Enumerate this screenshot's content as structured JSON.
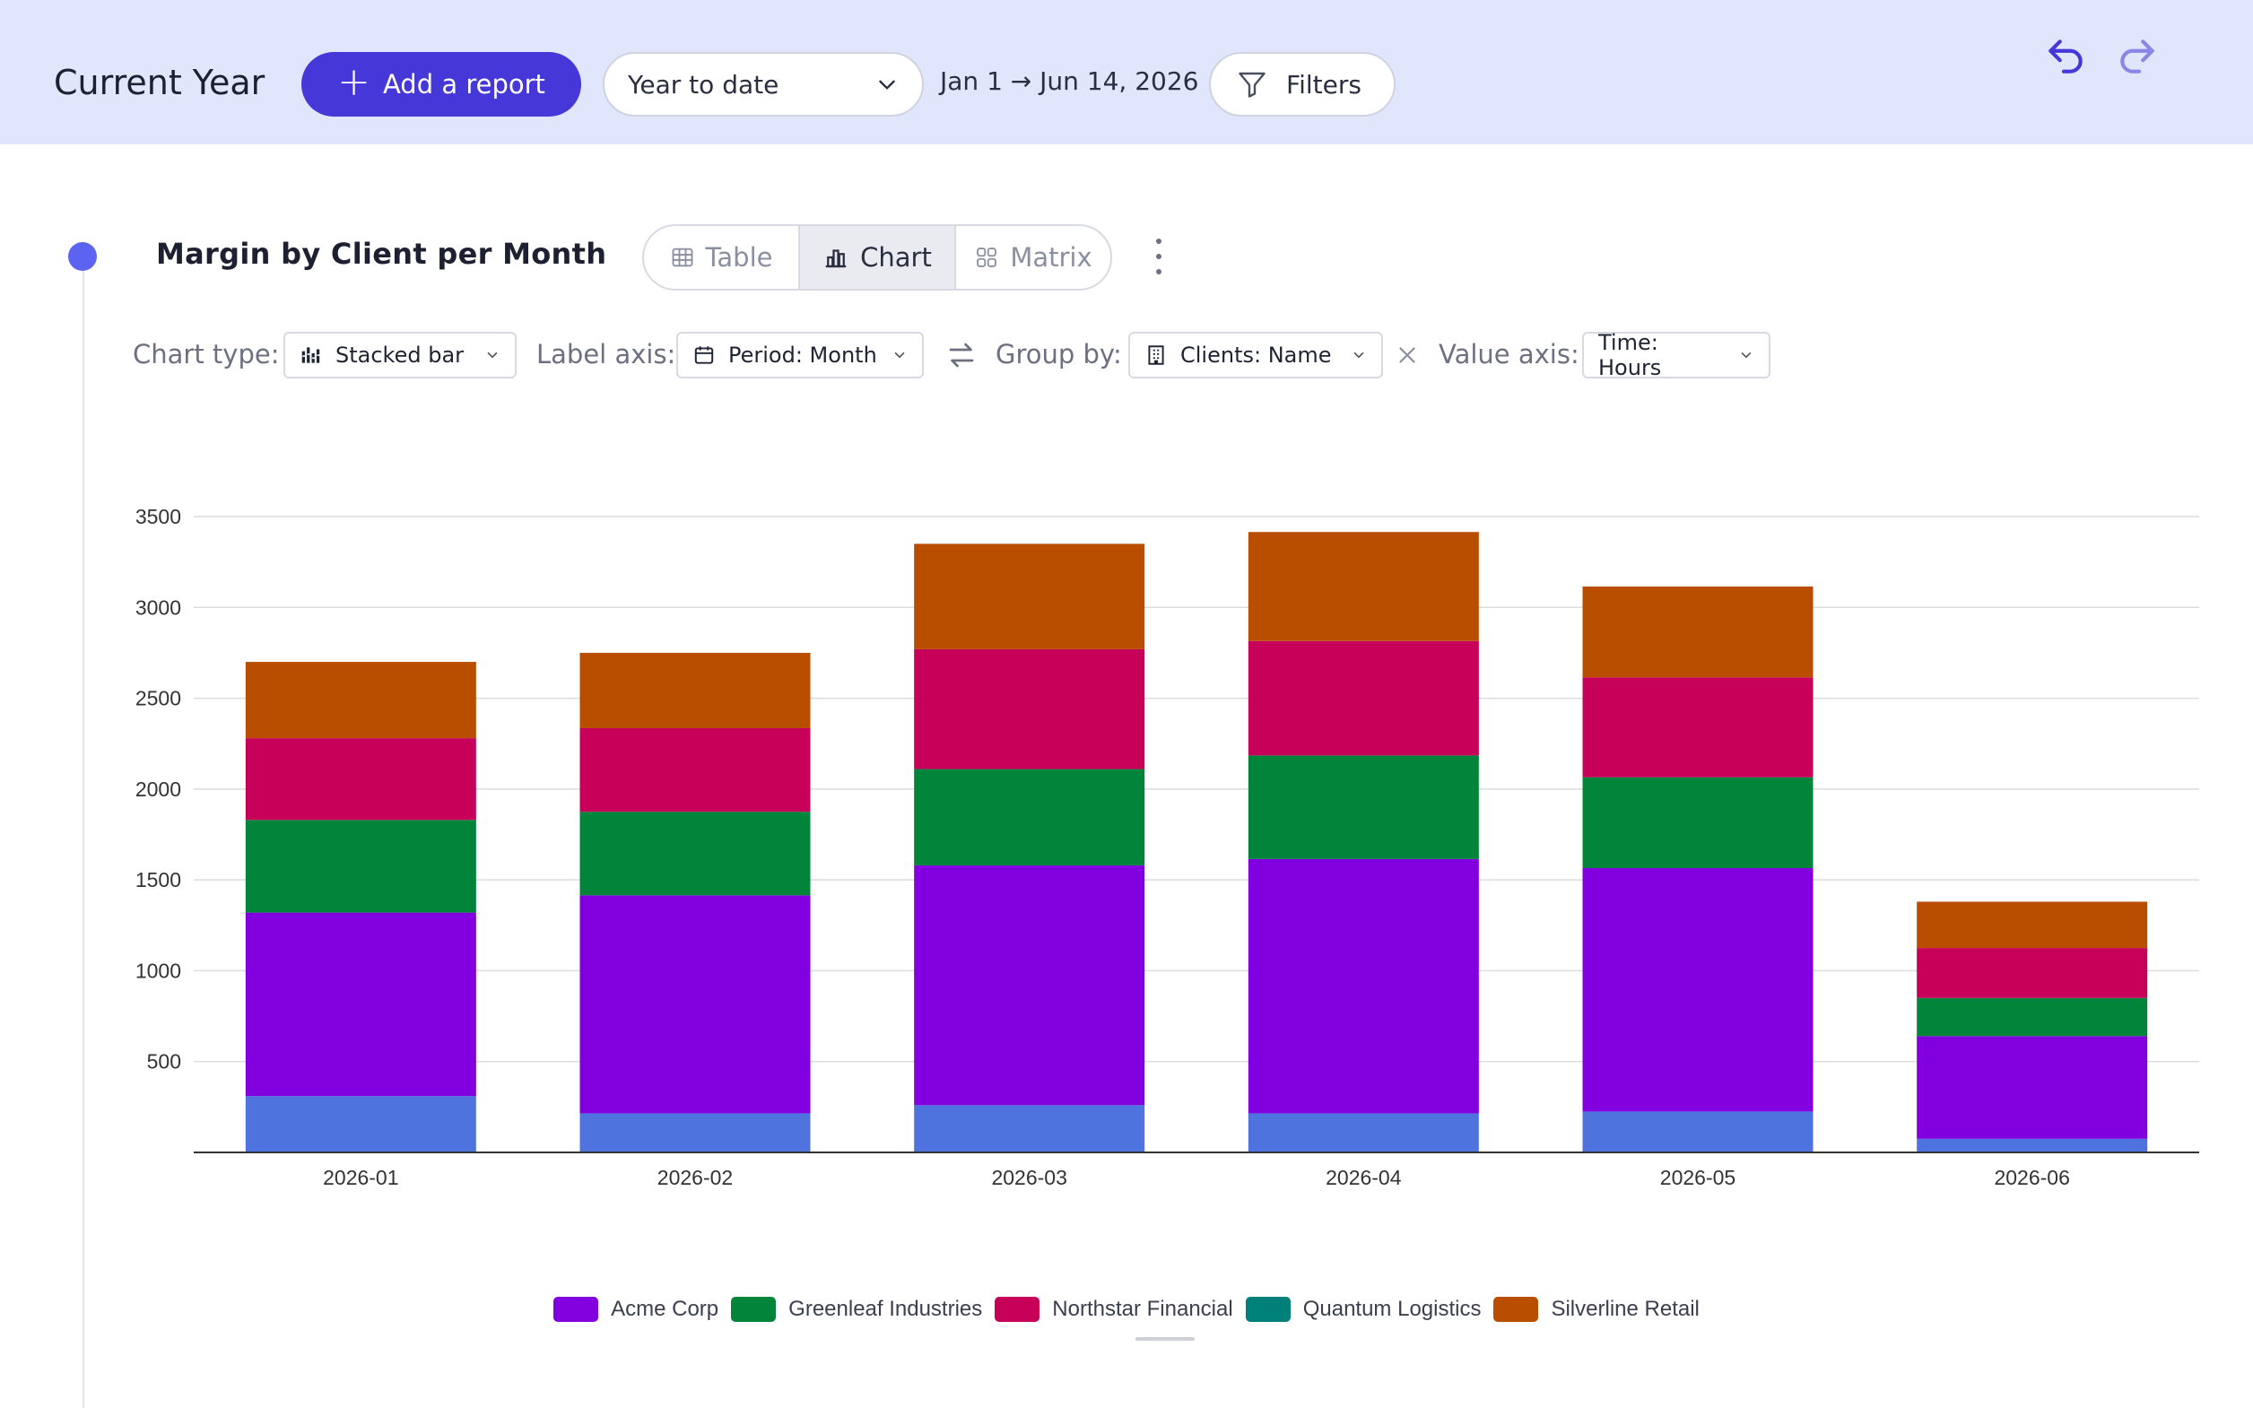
{
  "header": {
    "title": "Current Year",
    "add_report_label": "Add a report",
    "range_select_value": "Year to date",
    "date_range": "Jan 1 → Jun 14, 2026",
    "filters_label": "Filters",
    "undo_icon": "undo-icon",
    "redo_icon": "redo-icon"
  },
  "report": {
    "title": "Margin by Client per Month",
    "views": [
      {
        "label": "Table",
        "icon": "table-icon"
      },
      {
        "label": "Chart",
        "icon": "bar-chart-icon"
      },
      {
        "label": "Matrix",
        "icon": "grid-icon"
      }
    ],
    "active_view": "Chart",
    "options": {
      "chart_type_label": "Chart type:",
      "chart_type_value": "Stacked bar",
      "label_axis_label": "Label axis:",
      "label_axis_value": "Period: Month",
      "group_by_label": "Group by:",
      "group_by_value": "Clients: Name",
      "value_axis_label": "Value axis:",
      "value_axis_value": "Time: Hours"
    }
  },
  "colors": {
    "accent": "#4637d9",
    "topbar": "#e1e6fd",
    "unlabeled_series": "#4f73de"
  },
  "chart_data": {
    "type": "bar",
    "stacked": true,
    "title": "",
    "xlabel": "",
    "ylabel": "",
    "categories": [
      "2026-01",
      "2026-02",
      "2026-03",
      "2026-04",
      "2026-05",
      "2026-06"
    ],
    "ylim": [
      0,
      3500
    ],
    "yticks": [
      500,
      1000,
      1500,
      2000,
      2500,
      3000,
      3500
    ],
    "grid": true,
    "legend_position": "bottom",
    "series": [
      {
        "name": "",
        "color": "#4f73de",
        "values": [
          310,
          215,
          260,
          215,
          225,
          75
        ]
      },
      {
        "name": "Acme Corp",
        "color": "#8200e0",
        "values": [
          1010,
          1200,
          1320,
          1400,
          1340,
          565
        ]
      },
      {
        "name": "Greenleaf Industries",
        "color": "#02843a",
        "values": [
          510,
          460,
          530,
          570,
          500,
          210
        ]
      },
      {
        "name": "Northstar Financial",
        "color": "#c7005a",
        "values": [
          450,
          460,
          660,
          630,
          550,
          275
        ]
      },
      {
        "name": "Quantum Logistics",
        "color": "#01807a",
        "values": [
          0,
          0,
          0,
          0,
          0,
          0
        ]
      },
      {
        "name": "Silverline Retail",
        "color": "#b94e01",
        "values": [
          420,
          415,
          580,
          600,
          500,
          255
        ]
      }
    ]
  }
}
